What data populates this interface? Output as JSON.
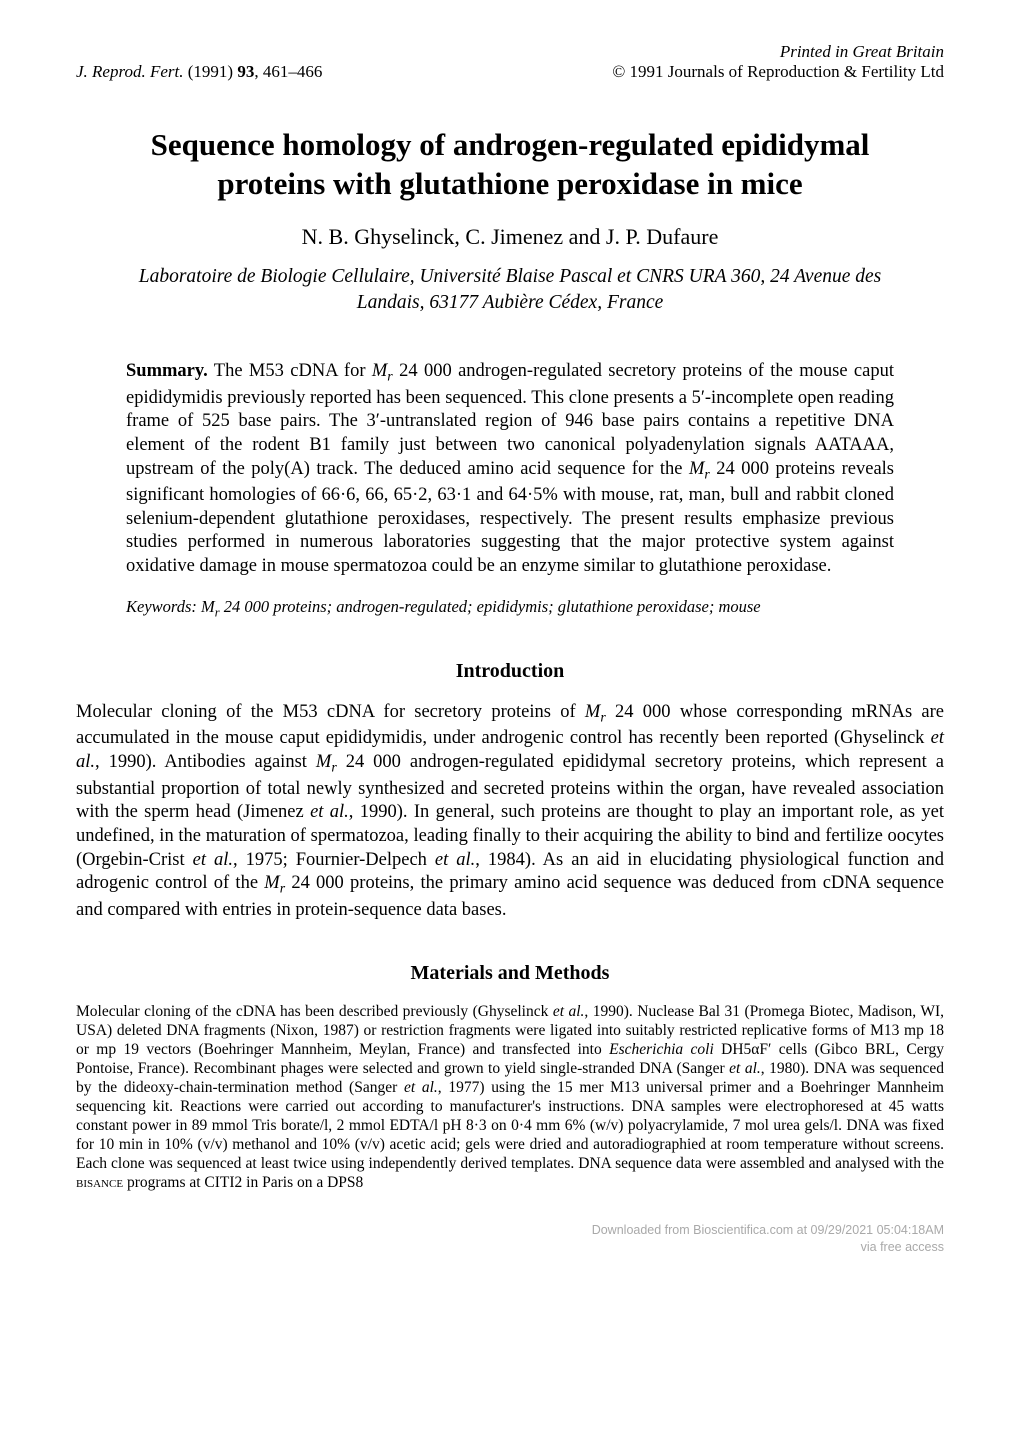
{
  "header": {
    "print_line": "Printed in Great Britain",
    "journal_abbrev": "J. Reprod. Fert.",
    "year_vol_pages": "(1991) 93, 461–466",
    "copyright": "© 1991 Journals of Reproduction & Fertility Ltd"
  },
  "title_line1": "Sequence homology of androgen-regulated epididymal",
  "title_line2": "proteins with glutathione peroxidase in mice",
  "authors": "N. B. Ghyselinck, C. Jimenez and J. P. Dufaure",
  "affiliation_line1": "Laboratoire de Biologie Cellulaire, Université Blaise Pascal et CNRS URA 360, 24 Avenue des",
  "affiliation_line2": "Landais, 63177 Aubière Cédex, France",
  "summary": {
    "label": "Summary.",
    "pre1": " The M53 cDNA for ",
    "mr": "M",
    "rsub": "r",
    "post1": " 24 000 androgen-regulated secretory proteins of the mouse caput epididymidis previously reported has been sequenced. This clone presents a 5′-incomplete open reading frame of 525 base pairs. The 3′-untranslated region of 946 base pairs contains a repetitive DNA element of the rodent B1 family just between two canonical polyadenylation signals AATAAA, upstream of the poly(A) track. The deduced amino acid sequence for the ",
    "post2": " 24 000 proteins reveals significant homologies of 66·6, 66, 65·2, 63·1 and 64·5% with mouse, rat, man, bull and rabbit cloned selenium-dependent glutathione peroxidases, respectively. The present results emphasize previous studies performed in numerous laboratories suggesting that the major protective system against oxidative damage in mouse spermatozoa could be an enzyme similar to glutathione peroxidase."
  },
  "keywords": {
    "label": "Keywords: ",
    "text": " 24 000 proteins; androgen-regulated; epididymis; glutathione peroxidase; mouse"
  },
  "intro_heading": "Introduction",
  "intro": {
    "p1a": "Molecular cloning of the M53 cDNA for secretory proteins of ",
    "p1b": " 24 000 whose corresponding mRNAs are accumulated in the mouse caput epididymidis, under androgenic control has recently been reported (Ghyselinck ",
    "etal": "et al.",
    "p1c": ", 1990). Antibodies against ",
    "p1d": " 24 000 androgen-regulated epididymal secretory proteins, which represent a substantial proportion of total newly synthesized and secreted proteins within the organ, have revealed association with the sperm head (Jimenez ",
    "p1e": ", 1990). In general, such proteins are thought to play an important role, as yet undefined, in the maturation of spermatozoa, leading finally to their acquiring the ability to bind and fertilize oocytes (Orgebin-Crist ",
    "p1f": ", 1975; Fournier-Delpech ",
    "p1g": ", 1984). As an aid in elucidating physiological function and adrogenic control of the ",
    "p1h": " 24 000 proteins, the primary amino acid sequence was deduced from cDNA sequence and compared with entries in protein-sequence data bases."
  },
  "methods_heading": "Materials and Methods",
  "methods": {
    "t1": "Molecular cloning of the cDNA has been described previously (Ghyselinck ",
    "t2": ", 1990). Nuclease Bal 31 (Promega Biotec, Madison, WI, USA) deleted DNA fragments (Nixon, 1987) or restriction fragments were ligated into suitably restricted replicative forms of M13 mp 18 or mp 19 vectors (Boehringer Mannheim, Meylan, France) and transfected into ",
    "ecoli": "Escherichia coli",
    "t3": " DH5αF′ cells (Gibco BRL, Cergy Pontoise, France). Recombinant phages were selected and grown to yield single-stranded DNA (Sanger ",
    "t4": ", 1980). DNA was sequenced by the dideoxy-chain-termination method (Sanger ",
    "t5": ", 1977) using the 15 mer M13 universal primer and a Boehringer Mannheim sequencing kit. Reactions were carried out according to manufacturer's instructions. DNA samples were electrophoresed at 45 watts constant power in 89 mmol Tris borate/l, 2 mmol EDTA/l pH 8·3 on 0·4 mm 6% (w/v) polyacrylamide, 7 mol urea gels/l. DNA was fixed for 10 min in 10% (v/v) methanol and 10% (v/v) acetic acid; gels were dried and autoradiographied at room temperature without screens. Each clone was sequenced at least twice using independently derived templates. DNA sequence data were assembled and analysed with the ",
    "bisance": "bisance",
    "t6": " programs at CITI2 in Paris on a DPS8"
  },
  "footer": {
    "line1": "Downloaded from Bioscientifica.com at 09/29/2021 05:04:18AM",
    "line2": "via free access"
  }
}
